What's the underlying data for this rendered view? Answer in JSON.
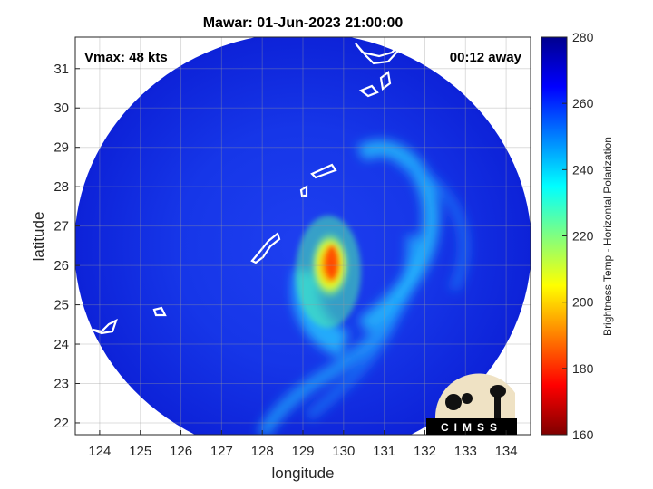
{
  "chart_data": {
    "type": "heatmap",
    "title": "Mawar: 01-Jun-2023 21:00:00",
    "xlabel": "longitude",
    "ylabel": "latitude",
    "xlim": [
      123.4,
      134.6
    ],
    "ylim": [
      21.7,
      31.8
    ],
    "x_ticks": [
      124,
      125,
      126,
      127,
      128,
      129,
      130,
      131,
      132,
      133,
      134
    ],
    "y_ticks": [
      22,
      23,
      24,
      25,
      26,
      27,
      28,
      29,
      30,
      31
    ],
    "grid": true,
    "annotations": {
      "vmax": "Vmax: 48 kts",
      "time_offset": "00:12 away"
    },
    "colorbar": {
      "label": "Brightness Temp - Horizontal Polarization",
      "range": [
        160,
        280
      ],
      "ticks": [
        160,
        180,
        200,
        220,
        240,
        260,
        280
      ],
      "colormap": [
        "#7f0000",
        "#ff0000",
        "#ff8000",
        "#ffff00",
        "#80ff80",
        "#00ffff",
        "#0080ff",
        "#0000ff",
        "#00008f"
      ]
    },
    "swath": {
      "center_lon": 129.0,
      "center_lat": 26.8,
      "background_temp": 270
    },
    "features": [
      {
        "name": "inner core",
        "lon": 129.6,
        "lat": 26.0,
        "min_temp": 190
      },
      {
        "name": "inner rainband",
        "lon": 130.0,
        "lat": 25.0,
        "min_temp": 222
      },
      {
        "name": "outer rainband north",
        "lon": 131.0,
        "lat": 28.6,
        "min_temp": 235
      },
      {
        "name": "outer rainband south",
        "lon": 129.8,
        "lat": 23.2,
        "min_temp": 238
      }
    ],
    "logo": "CIMSS"
  }
}
